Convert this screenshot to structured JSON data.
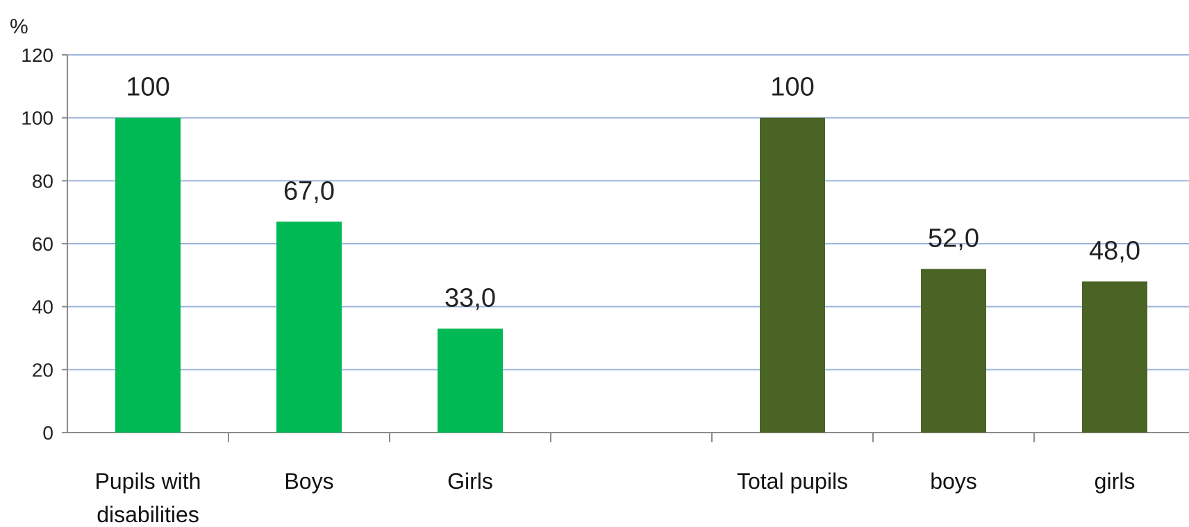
{
  "chart_data": {
    "type": "bar",
    "ylabel": "%",
    "ylim": [
      0,
      120
    ],
    "yticks": [
      0,
      20,
      40,
      60,
      80,
      100,
      120
    ],
    "grid": true,
    "categories": [
      [
        "Pupils with",
        "disabilities"
      ],
      [
        "Boys"
      ],
      [
        "Girls"
      ],
      [],
      [
        "Total pupils"
      ],
      [
        "boys"
      ],
      [
        "girls"
      ]
    ],
    "values": [
      100,
      67.0,
      33.0,
      null,
      100,
      52.0,
      48.0
    ],
    "value_labels": [
      "100",
      "67,0",
      "33,0",
      "",
      "100",
      "52,0",
      "48,0"
    ],
    "colors": [
      "#00b954",
      "#00b954",
      "#00b954",
      "",
      "#4a6426",
      "#4a6426",
      "#4a6426"
    ]
  }
}
